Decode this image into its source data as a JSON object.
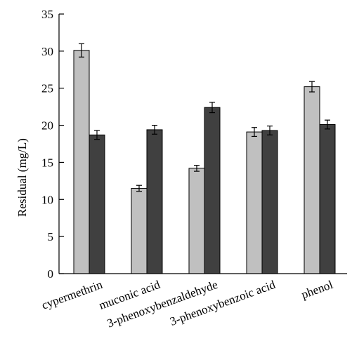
{
  "chart_data": {
    "type": "bar",
    "ylabel": "Residual (mg/L)",
    "xlabel": "",
    "ylim": [
      0,
      35
    ],
    "yticks": [
      "0",
      "5",
      "10",
      "15",
      "20",
      "25",
      "30",
      "35"
    ],
    "categories": [
      "cypermethrin",
      "muconic acid",
      "3-phenoxybenzaldehyde",
      "3-phenoxybenzoic acid",
      "phenol"
    ],
    "series": [
      {
        "color": "#c0c0c0",
        "values": [
          30.1,
          11.5,
          14.2,
          19.1,
          25.2
        ],
        "errors": [
          0.9,
          0.4,
          0.4,
          0.6,
          0.7
        ]
      },
      {
        "color": "#404040",
        "values": [
          18.7,
          19.4,
          22.4,
          19.3,
          20.1
        ],
        "errors": [
          0.6,
          0.6,
          0.7,
          0.6,
          0.6
        ]
      }
    ],
    "grid": false,
    "legend": "none"
  }
}
